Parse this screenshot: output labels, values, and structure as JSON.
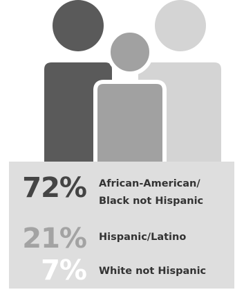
{
  "chart_data": {
    "type": "table",
    "categories": [
      "African-American/ Black not Hispanic",
      "Hispanic/Latino",
      "White not Hispanic"
    ],
    "values": [
      72,
      21,
      7
    ],
    "value_labels": [
      "72%",
      "21%",
      "7%"
    ],
    "unit": "%",
    "label_lines": [
      [
        "African-American/",
        "Black not Hispanic"
      ],
      [
        "Hispanic/Latino"
      ],
      [
        "White not Hispanic"
      ]
    ]
  },
  "colors": {
    "figure_left": "#5a5a5a",
    "figure_middle": "#a1a1a1",
    "figure_right": "#d4d4d4",
    "panel_background": "#dedede",
    "pct_dark": "#444444",
    "pct_mid": "#a3a3a3",
    "pct_light": "#ffffff",
    "label_text": "#333333"
  },
  "icons": [
    "people-group-icon"
  ]
}
